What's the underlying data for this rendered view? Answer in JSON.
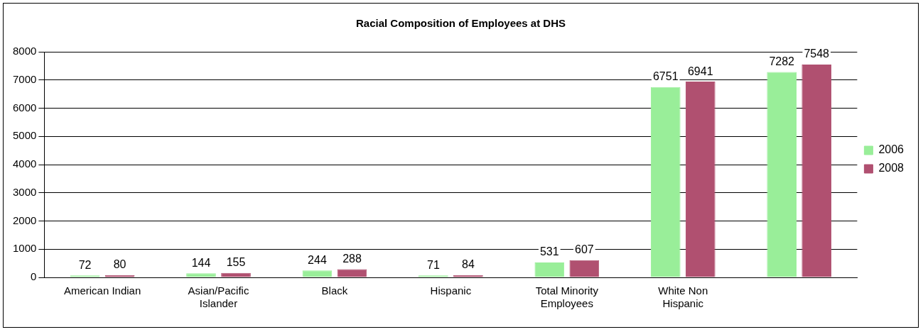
{
  "chart_data": {
    "type": "bar",
    "title": "Racial Composition of Employees at DHS",
    "categories": [
      "American Indian",
      "Asian/Pacific Islander",
      "Black",
      "Hispanic",
      "Total Minority Employees",
      "White Non Hispanic",
      null
    ],
    "series": [
      {
        "name": "2006",
        "color": "#99ee99",
        "values": [
          72,
          144,
          244,
          71,
          531,
          6751,
          7282
        ]
      },
      {
        "name": "2008",
        "color": "#b05070",
        "values": [
          80,
          155,
          288,
          84,
          607,
          6941,
          7548
        ]
      }
    ],
    "ylim": [
      0,
      8000
    ],
    "yticks": [
      0,
      1000,
      2000,
      3000,
      4000,
      5000,
      6000,
      7000,
      8000
    ],
    "grid": "y",
    "legend": "right",
    "data_labels": true
  }
}
